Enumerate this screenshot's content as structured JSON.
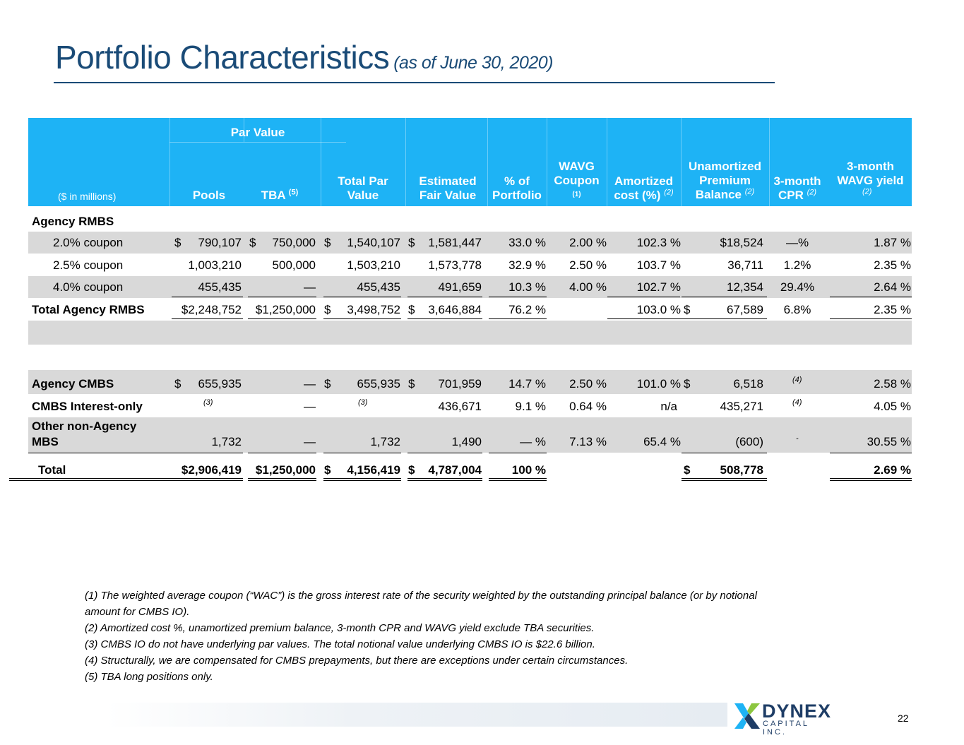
{
  "title": "Portfolio Characteristics",
  "title_sub": "(as of June 30, 2020)",
  "table": {
    "group_header": "Par Value",
    "units_label": "($ in millions)",
    "columns": {
      "pools": "Pools",
      "tba": "TBA",
      "tba_note": "(5)",
      "total_par_1": "Total Par",
      "total_par_2": "Value",
      "efv_1": "Estimated",
      "efv_2": "Fair Value",
      "pct_1": "% of",
      "pct_2": "Portfolio",
      "wavg_1": "WAVG",
      "wavg_2": "Coupon",
      "wavg_note": "(1)",
      "amort_1": "Amortized",
      "amort_2": "cost (%)",
      "amort_note": "(2)",
      "unam_1": "Unamortized",
      "unam_2": "Premium",
      "unam_3": "Balance",
      "unam_note": "(2)",
      "cpr_1": "3-month",
      "cpr_2": "CPR",
      "cpr_note": "(2)",
      "yield_1": "3-month",
      "yield_2": "WAVG yield",
      "yield_note": "(2)"
    },
    "section_rmbs": "Agency RMBS",
    "rows_rmbs": [
      {
        "label": "2.0% coupon",
        "d1": "$",
        "pools": "790,107",
        "d2": "$",
        "tba": "750,000",
        "d3": "$",
        "total": "1,540,107",
        "d4": "$",
        "efv": "1,581,447",
        "pct": "33.0 %",
        "wavg": "2.00 %",
        "amort": "102.3 %",
        "d5": "",
        "unam": "$18,524",
        "cpr": "—%",
        "yield": "1.87 %"
      },
      {
        "label": "2.5% coupon",
        "d1": "",
        "pools": "1,003,210",
        "d2": "",
        "tba": "500,000",
        "d3": "",
        "total": "1,503,210",
        "d4": "",
        "efv": "1,573,778",
        "pct": "32.9 %",
        "wavg": "2.50 %",
        "amort": "103.7 %",
        "d5": "",
        "unam": "36,711",
        "cpr": "1.2%",
        "yield": "2.35 %"
      },
      {
        "label": "4.0% coupon",
        "d1": "",
        "pools": "455,435",
        "d2": "",
        "tba": "—",
        "d3": "",
        "total": "455,435",
        "d4": "",
        "efv": "491,659",
        "pct": "10.3 %",
        "wavg": "4.00 %",
        "amort": "102.7 %",
        "d5": "",
        "unam": "12,354",
        "cpr": "29.4%",
        "yield": "2.64 %"
      }
    ],
    "total_rmbs": {
      "label": "Total Agency RMBS",
      "d1": "",
      "pools": "$2,248,752",
      "d2": "",
      "tba": "$1,250,000",
      "d3": "$",
      "total": "3,498,752",
      "d4": "$",
      "efv": "3,646,884",
      "pct": "76.2 %",
      "wavg": "",
      "amort": "103.0 %",
      "d5": "$",
      "unam": "67,589",
      "cpr": "6.8%",
      "yield": "2.35 %"
    },
    "rows_other": [
      {
        "label": "Agency CMBS",
        "d1": "$",
        "pools": "655,935",
        "pools_note": "",
        "d2": "",
        "tba": "—",
        "d3": "$",
        "total": "655,935",
        "total_note": "",
        "d4": "$",
        "efv": "701,959",
        "pct": "14.7 %",
        "wavg": "2.50 %",
        "amort": "101.0 %",
        "d5": "$",
        "unam": "6,518",
        "cpr": "",
        "cpr_note": "(4)",
        "yield": "2.58 %"
      },
      {
        "label": "CMBS Interest-only",
        "d1": "",
        "pools": "",
        "pools_note": "(3)",
        "d2": "",
        "tba": "—",
        "d3": "",
        "total": "",
        "total_note": "(3)",
        "d4": "",
        "efv": "436,671",
        "pct": "9.1 %",
        "wavg": "0.64 %",
        "amort": "n/a",
        "d5": "",
        "unam": "435,271",
        "cpr": "",
        "cpr_note": "(4)",
        "yield": "4.05 %"
      },
      {
        "label_1": "Other non-Agency",
        "label_2": "MBS",
        "d1": "",
        "pools": "1,732",
        "pools_note": "",
        "d2": "",
        "tba": "—",
        "d3": "",
        "total": "1,732",
        "total_note": "",
        "d4": "",
        "efv": "1,490",
        "pct": "— %",
        "wavg": "7.13 %",
        "amort": "65.4 %",
        "d5": "",
        "unam": "(600)",
        "cpr": "-",
        "cpr_note": "",
        "yield": "30.55 %"
      }
    ],
    "grand_total": {
      "label": "Total",
      "pools": "$2,906,419",
      "tba": "$1,250,000",
      "d3": "$",
      "total": "4,156,419",
      "d4": "$",
      "efv": "4,787,004",
      "pct": "100 %",
      "d5": "$",
      "unam": "508,778",
      "yield": "2.69 %"
    }
  },
  "footnotes": [
    "(1) The weighted average coupon (“WAC”) is the gross interest rate of the security weighted by the outstanding principal balance (or by notional",
    "amount for CMBS IO).",
    "(2) Amortized cost %, unamortized premium balance, 3-month CPR and WAVG yield exclude TBA securities.",
    "(3) CMBS IO do not have underlying par values. The total notional value underlying CMBS IO is $22.6 billion.",
    "(4) Structurally, we are compensated for CMBS prepayments, but there are exceptions under certain circumstances.",
    "(5) TBA long positions only."
  ],
  "logo": {
    "word": "DYNEX",
    "word2": "CAPITAL INC."
  },
  "page_number": "22",
  "colors": {
    "title": "#1a4b77",
    "header_bg": "#1eb3f5",
    "row_gray": "#d9d9d9",
    "logo": "#1e3d66"
  }
}
